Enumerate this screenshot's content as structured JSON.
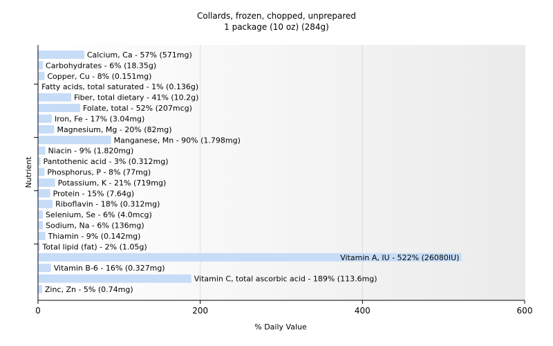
{
  "chart_data": {
    "type": "bar",
    "orientation": "horizontal",
    "title": "Collards, frozen, chopped, unprepared",
    "subtitle": "1 package (10 oz) (284g)",
    "xlabel": "% Daily Value",
    "ylabel": "Nutrient",
    "xlim": [
      0,
      600
    ],
    "xticks": [
      0,
      200,
      400,
      600
    ],
    "grid": true,
    "bar_color": "#c6dcf7",
    "categories": [
      "Calcium, Ca - 57% (571mg)",
      "Carbohydrates - 6% (18.35g)",
      "Copper, Cu - 8% (0.151mg)",
      "Fatty acids, total saturated - 1% (0.136g)",
      "Fiber, total dietary - 41% (10.2g)",
      "Folate, total - 52% (207mcg)",
      "Iron, Fe - 17% (3.04mg)",
      "Magnesium, Mg - 20% (82mg)",
      "Manganese, Mn - 90% (1.798mg)",
      "Niacin - 9% (1.820mg)",
      "Pantothenic acid - 3% (0.312mg)",
      "Phosphorus, P - 8% (77mg)",
      "Potassium, K - 21% (719mg)",
      "Protein - 15% (7.64g)",
      "Riboflavin - 18% (0.312mg)",
      "Selenium, Se - 6% (4.0mcg)",
      "Sodium, Na - 6% (136mg)",
      "Thiamin - 9% (0.142mg)",
      "Total lipid (fat) - 2% (1.05g)",
      "Vitamin A, IU - 522% (26080IU)",
      "Vitamin B-6 - 16% (0.327mg)",
      "Vitamin C, total ascorbic acid - 189% (113.6mg)",
      "Zinc, Zn - 5% (0.74mg)"
    ],
    "values": [
      57,
      6,
      8,
      1,
      41,
      52,
      17,
      20,
      90,
      9,
      3,
      8,
      21,
      15,
      18,
      6,
      6,
      9,
      2,
      522,
      16,
      189,
      5
    ]
  }
}
